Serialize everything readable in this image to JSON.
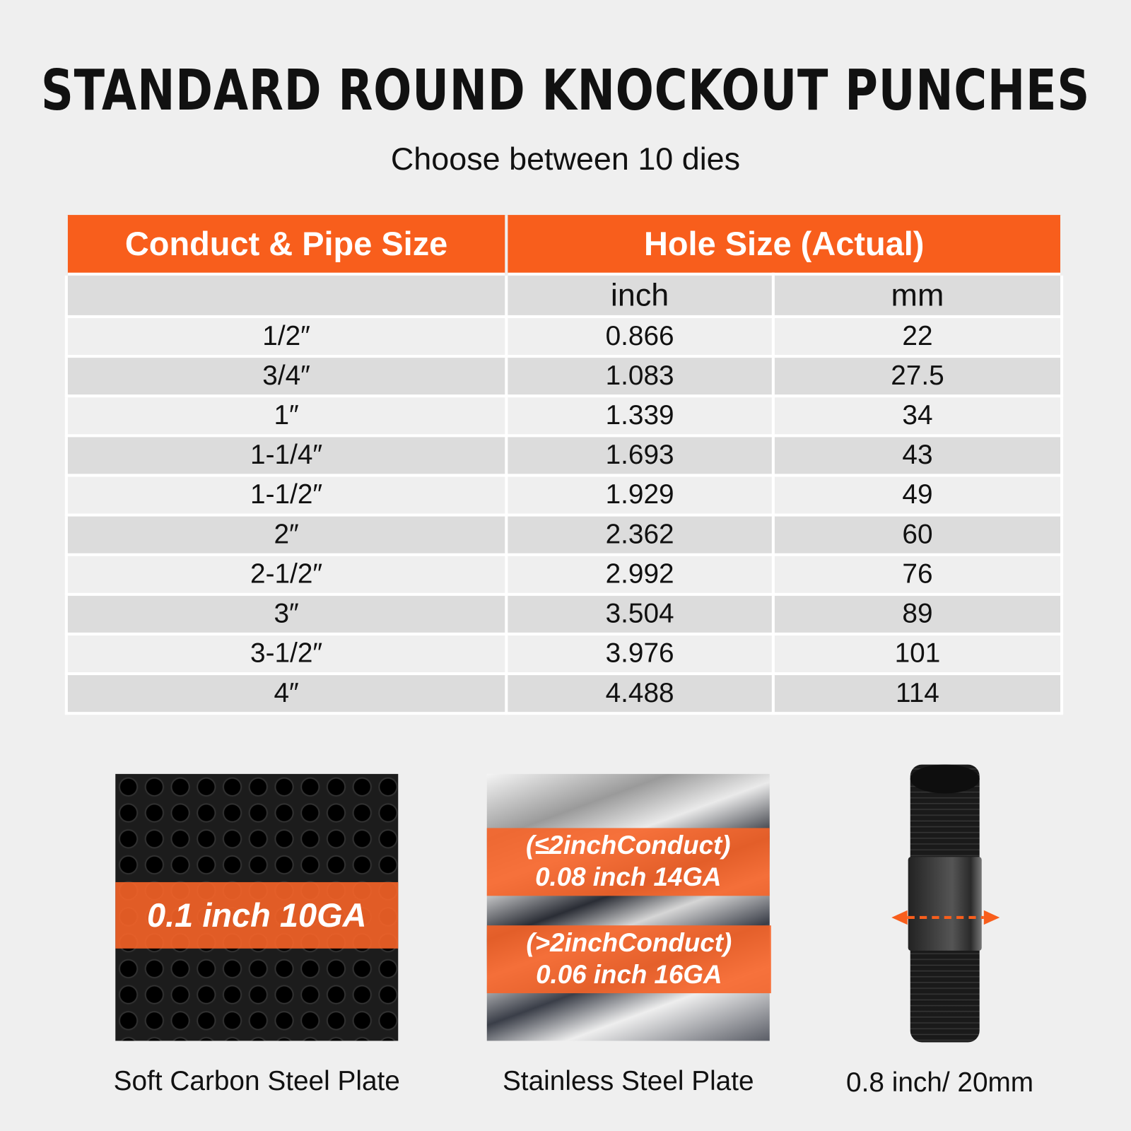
{
  "title": "STANDARD ROUND KNOCKOUT PUNCHES",
  "subtitle": "Choose between 10 dies",
  "table": {
    "headers": [
      "Conduct & Pipe Size",
      "Hole Size (Actual)"
    ],
    "subheaders": [
      "",
      "inch",
      "mm"
    ],
    "rows": [
      [
        "1/2″",
        "0.866",
        "22"
      ],
      [
        "3/4″",
        "1.083",
        "27.5"
      ],
      [
        "1″",
        "1.339",
        "34"
      ],
      [
        "1-1/4″",
        "1.693",
        "43"
      ],
      [
        "1-1/2″",
        "1.929",
        "49"
      ],
      [
        "2″",
        "2.362",
        "60"
      ],
      [
        "2-1/2″",
        "2.992",
        "76"
      ],
      [
        "3″",
        "3.504",
        "89"
      ],
      [
        "3-1/2″",
        "3.976",
        "101"
      ],
      [
        "4″",
        "4.488",
        "114"
      ]
    ]
  },
  "materials": [
    {
      "caption": "Soft Carbon Steel Plate",
      "labels": [
        "0.1 inch  10GA"
      ]
    },
    {
      "caption": "Stainless Steel Plate",
      "labels": [
        "(≤2inchConduct)",
        "0.08 inch 14GA",
        "(>2inchConduct)",
        "0.06 inch 16GA"
      ]
    },
    {
      "caption": "0.8 inch/ 20mm"
    }
  ],
  "colors": {
    "accent": "#f85e1c",
    "background": "#efefef"
  }
}
